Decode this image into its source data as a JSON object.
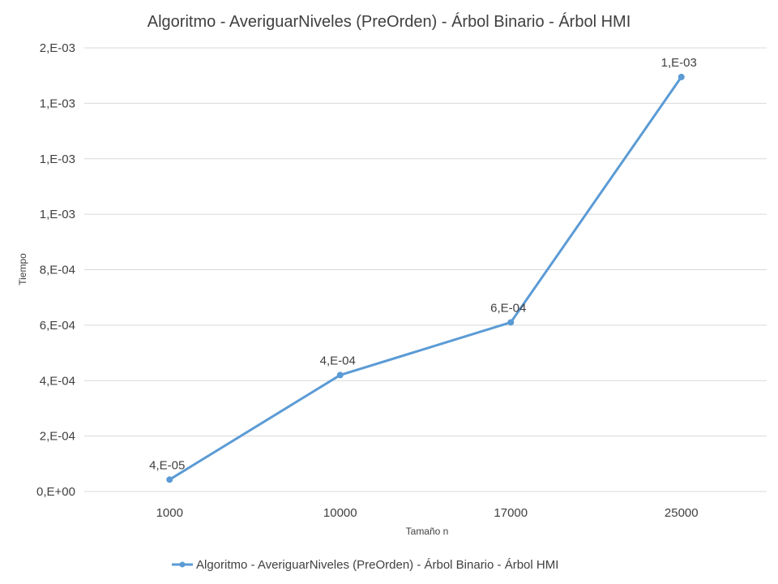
{
  "chart_data": {
    "type": "line",
    "title": "Algoritmo - AveriguarNiveles (PreOrden) - Árbol Binario - Árbol HMI",
    "xlabel": "Tamaño n",
    "ylabel": "Tiempo",
    "categories": [
      "1000",
      "10000",
      "17000",
      "25000"
    ],
    "series": [
      {
        "name": "Algoritmo - AveriguarNiveles (PreOrden) - Árbol Binario - Árbol HMI",
        "values": [
          4.3e-05,
          0.00042,
          0.00061,
          0.001495
        ],
        "data_labels": [
          "4,E-05",
          "4,E-04",
          "6,E-04",
          "1,E-03"
        ],
        "color": "#5b9bd5"
      }
    ],
    "ylim": [
      0,
      0.0016
    ],
    "yticks": [
      0,
      0.0002,
      0.0004,
      0.0006,
      0.0008,
      0.001,
      0.0012,
      0.0014,
      0.0016
    ],
    "ytick_labels": [
      "0,E+00",
      "2,E-04",
      "4,E-04",
      "6,E-04",
      "8,E-04",
      "1,E-03",
      "1,E-03",
      "1,E-03",
      "2,E-03"
    ],
    "grid": true,
    "legend_position": "bottom"
  }
}
